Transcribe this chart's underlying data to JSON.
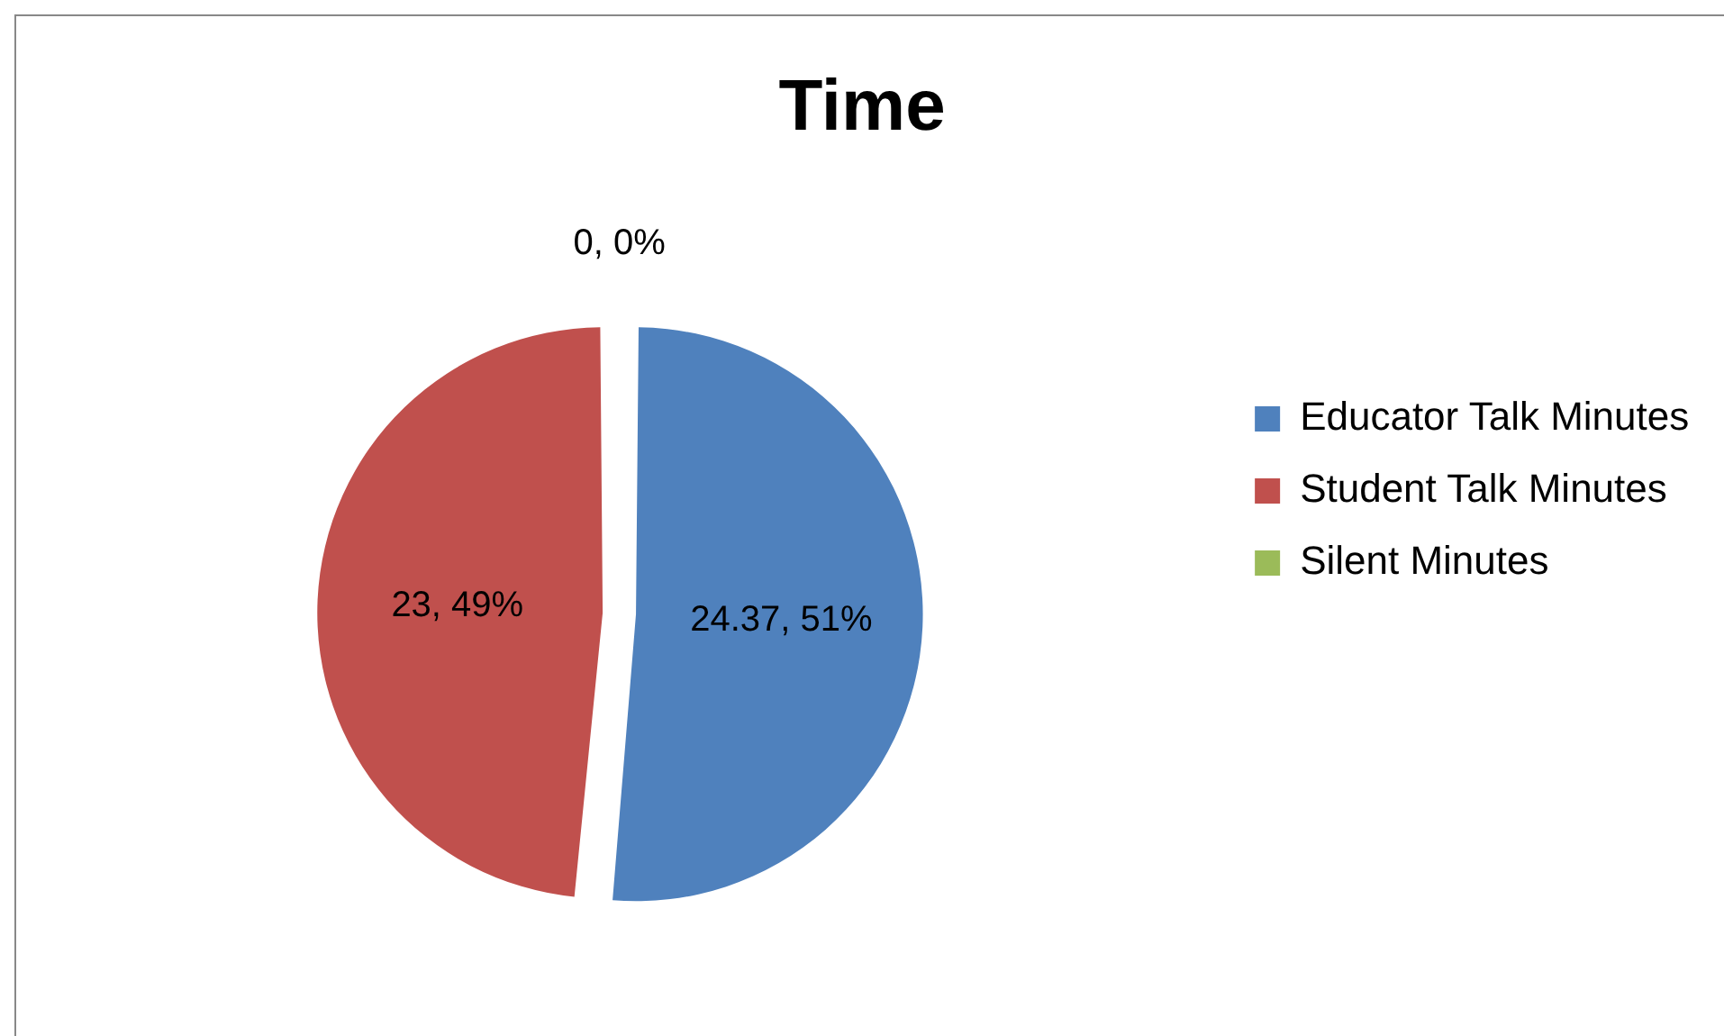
{
  "chart_data": {
    "type": "pie",
    "title": "Time",
    "categories": [
      "Educator Talk Minutes",
      "Student Talk Minutes",
      "Silent Minutes"
    ],
    "values": [
      24.37,
      23,
      0
    ],
    "colors": [
      "#4f81bd",
      "#c0504d",
      "#9bbb59"
    ],
    "value_labels": [
      "24.37, 51%",
      "23, 49%",
      "0, 0%"
    ],
    "legend": "right"
  }
}
